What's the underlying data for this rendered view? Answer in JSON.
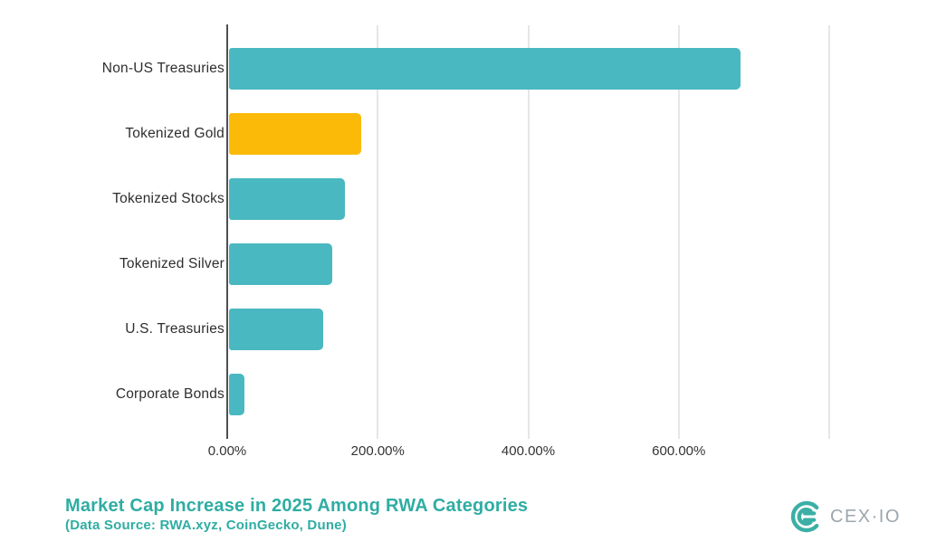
{
  "chart_data": {
    "type": "bar",
    "orientation": "horizontal",
    "title": "Market Cap Increase in 2025 Among RWA Categories",
    "subtitle": "(Data Source: RWA.xyz, CoinGecko, Dune)",
    "categories": [
      "Non-US Treasuries",
      "Tokenized Gold",
      "Tokenized Stocks",
      "Tokenized Silver",
      "U.S. Treasuries",
      "Corporate Bonds"
    ],
    "values": [
      680,
      176,
      154,
      137,
      125,
      20
    ],
    "value_unit": "percent",
    "bar_colors": [
      "#49b8c1",
      "#fbba08",
      "#49b8c1",
      "#49b8c1",
      "#49b8c1",
      "#49b8c1"
    ],
    "xlim": [
      0,
      800
    ],
    "x_axis": {
      "tick_labels": [
        "0.00%",
        "200.00%",
        "400.00%",
        "600.00%"
      ],
      "tick_values": [
        0,
        200,
        400,
        600
      ],
      "gridline_values": [
        0,
        200,
        400,
        600,
        800
      ]
    },
    "grid": true,
    "legend": false
  },
  "branding": {
    "logo_text": "CEX·IO"
  },
  "colors": {
    "bar_teal": "#49b8c1",
    "bar_gold": "#fbba08",
    "title_teal": "#2fada3",
    "axis_line": "#4d4f50",
    "gridline": "#e4e6e7",
    "label_text": "#2e2e2e",
    "logo_mark_teal": "#3bafa6",
    "logo_text_gray": "#9da6ad"
  }
}
